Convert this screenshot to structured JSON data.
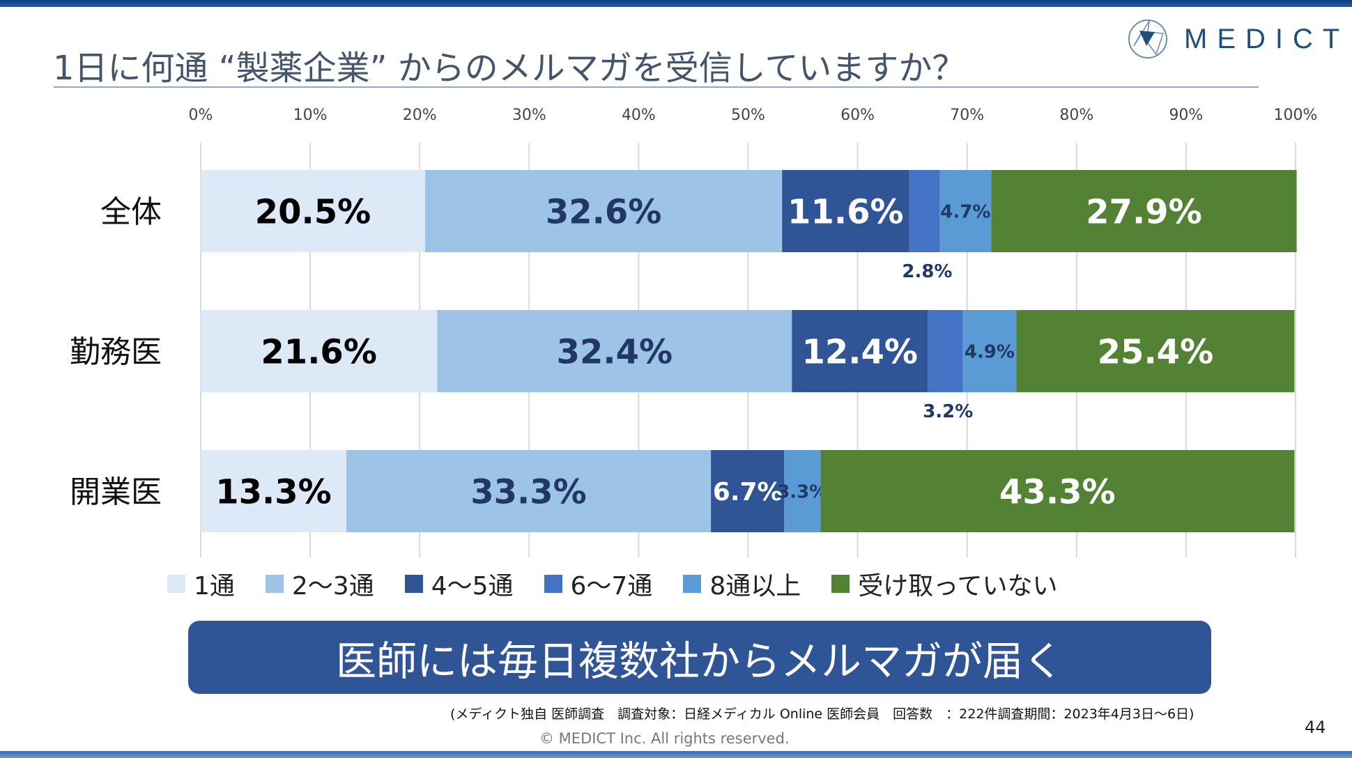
{
  "header": {
    "title": "1日に何通 “製薬企業” からのメルマガを受信していますか？",
    "logo_text": "MEDICT"
  },
  "chart_data": {
    "type": "bar",
    "orientation": "horizontal",
    "stacked": true,
    "xlim": [
      0,
      100
    ],
    "x_ticks": [
      "0%",
      "10%",
      "20%",
      "30%",
      "40%",
      "50%",
      "60%",
      "70%",
      "80%",
      "90%",
      "100%"
    ],
    "categories": [
      "全体",
      "勤務医",
      "開業医"
    ],
    "series": [
      {
        "name": "1通",
        "color": "#dde9f6",
        "label_color": "#000000",
        "values": [
          20.5,
          21.6,
          13.3
        ]
      },
      {
        "name": "2～3通",
        "color": "#9dc3e6",
        "label_color": "#1f3864",
        "values": [
          32.6,
          32.4,
          33.3
        ]
      },
      {
        "name": "4～5通",
        "color": "#2f5597",
        "label_color": "#ffffff",
        "values": [
          11.6,
          12.4,
          6.7
        ]
      },
      {
        "name": "6～7通",
        "color": "#4472c4",
        "label_color": "#1f3864",
        "values": [
          2.8,
          3.2,
          0
        ]
      },
      {
        "name": "8通以上",
        "color": "#5b9bd5",
        "label_color": "#1f3864",
        "values": [
          4.7,
          4.9,
          3.3
        ]
      },
      {
        "name": "受け取っていない",
        "color": "#548235",
        "label_color": "#ffffff",
        "values": [
          27.9,
          25.4,
          43.3
        ]
      }
    ],
    "legend": "bottom",
    "grid": true
  },
  "banner": "医師には毎日複数社からメルマガが届く",
  "footer": {
    "note": "(メディクト独自 医師調査　調査対象：日経メディカル Online 医師会員　回答数　：222件調査期間：2023年4月3日～6日)",
    "copyright": "© MEDICT Inc.  All rights reserved.",
    "page": "44"
  }
}
